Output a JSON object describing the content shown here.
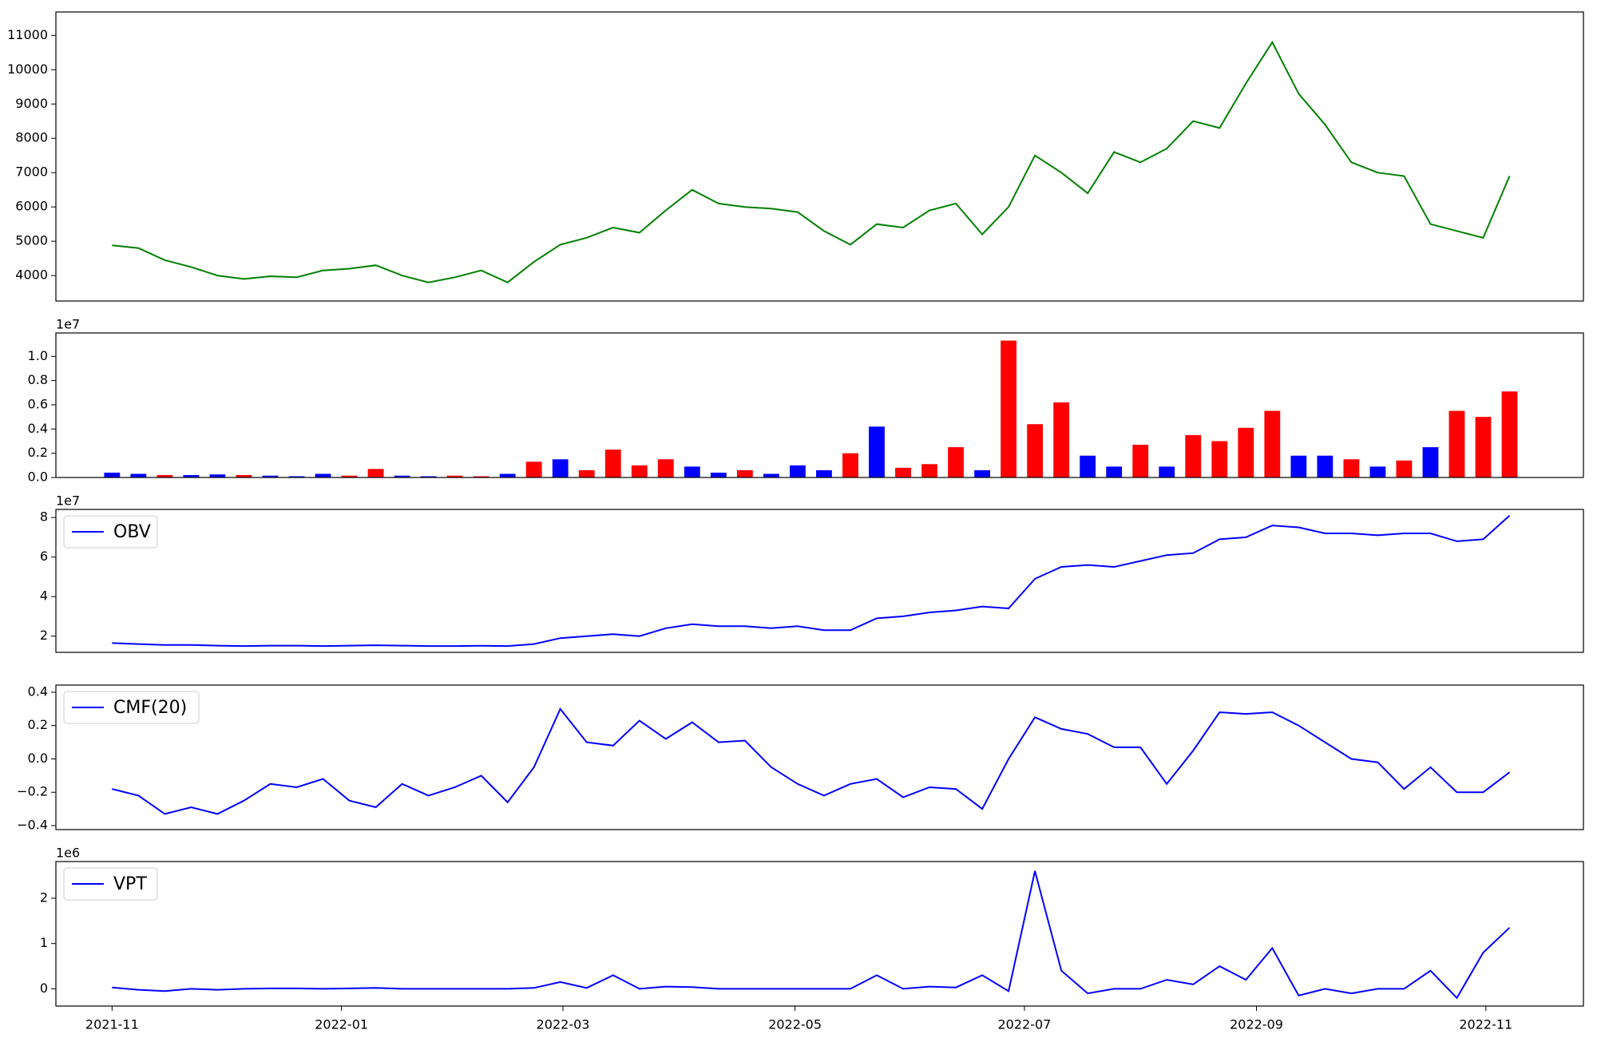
{
  "chart_data": [
    {
      "type": "line",
      "x": [
        0,
        1,
        2,
        3,
        4,
        5,
        6,
        7,
        8,
        9,
        10,
        11,
        12,
        13,
        14,
        15,
        16,
        17,
        18,
        19,
        20,
        21,
        22,
        23,
        24,
        25,
        26,
        27,
        28,
        29,
        30,
        31,
        32,
        33,
        34,
        35,
        36,
        37,
        38,
        39,
        40,
        41,
        42,
        43,
        44,
        45,
        46,
        47,
        48,
        49,
        50,
        51,
        52,
        53
      ],
      "xlim": [
        -2.13,
        55.8
      ],
      "series": [
        {
          "color": "#008000",
          "values": [
            4880,
            4800,
            4450,
            4250,
            4000,
            3900,
            3980,
            3950,
            4150,
            4200,
            4300,
            4000,
            3800,
            3950,
            4150,
            3800,
            4400,
            4900,
            5100,
            5400,
            5250,
            5900,
            6500,
            6100,
            6000,
            5950,
            5850,
            5300,
            4900,
            5500,
            5400,
            5900,
            6100,
            5200,
            6000,
            7500,
            7000,
            6400,
            7600,
            7300,
            7700,
            8500,
            8300,
            9600,
            10800,
            9300,
            8400,
            7300,
            7000,
            6900,
            5500,
            5300,
            5100,
            6900
          ]
        }
      ],
      "ylim": [
        3258,
        11682
      ],
      "yticks": [
        4000,
        5000,
        6000,
        7000,
        8000,
        9000,
        10000,
        11000
      ]
    },
    {
      "type": "bar",
      "x": [
        0,
        1,
        2,
        3,
        4,
        5,
        6,
        7,
        8,
        9,
        10,
        11,
        12,
        13,
        14,
        15,
        16,
        17,
        18,
        19,
        20,
        21,
        22,
        23,
        24,
        25,
        26,
        27,
        28,
        29,
        30,
        31,
        32,
        33,
        34,
        35,
        36,
        37,
        38,
        39,
        40,
        41,
        42,
        43,
        44,
        45,
        46,
        47,
        48,
        49,
        50,
        51,
        52,
        53
      ],
      "xlim": [
        -2.13,
        55.8
      ],
      "values": [
        400000,
        300000,
        200000,
        200000,
        250000,
        200000,
        150000,
        100000,
        300000,
        150000,
        700000,
        150000,
        100000,
        150000,
        100000,
        300000,
        1300000,
        1500000,
        600000,
        2300000,
        1000000,
        1500000,
        900000,
        400000,
        600000,
        300000,
        1000000,
        600000,
        2000000,
        4200000,
        800000,
        1100000,
        2500000,
        600000,
        11300000,
        4400000,
        6200000,
        1800000,
        900000,
        2700000,
        900000,
        3500000,
        3000000,
        4100000,
        5500000,
        1800000,
        1800000,
        1500000,
        900000,
        1400000,
        2500000,
        5500000,
        5000000,
        7100000
      ],
      "colors": [
        "blue",
        "blue",
        "red",
        "blue",
        "blue",
        "red",
        "blue",
        "blue",
        "blue",
        "red",
        "red",
        "blue",
        "blue",
        "red",
        "red",
        "blue",
        "red",
        "blue",
        "red",
        "red",
        "red",
        "red",
        "blue",
        "blue",
        "red",
        "blue",
        "blue",
        "blue",
        "red",
        "blue",
        "red",
        "red",
        "red",
        "blue",
        "red",
        "red",
        "red",
        "blue",
        "blue",
        "red",
        "blue",
        "red",
        "red",
        "red",
        "red",
        "blue",
        "blue",
        "red",
        "blue",
        "red",
        "blue",
        "red",
        "red",
        "red"
      ],
      "ylim": [
        0,
        11930000
      ],
      "yticks": [
        {
          "value": 0,
          "label": "0.0"
        },
        {
          "value": 2000000,
          "label": "0.2"
        },
        {
          "value": 4000000,
          "label": "0.4"
        },
        {
          "value": 6000000,
          "label": "0.6"
        },
        {
          "value": 8000000,
          "label": "0.8"
        },
        {
          "value": 10000000,
          "label": "1.0"
        }
      ],
      "offset_text": "1e7"
    },
    {
      "type": "line",
      "x": [
        0,
        1,
        2,
        3,
        4,
        5,
        6,
        7,
        8,
        9,
        10,
        11,
        12,
        13,
        14,
        15,
        16,
        17,
        18,
        19,
        20,
        21,
        22,
        23,
        24,
        25,
        26,
        27,
        28,
        29,
        30,
        31,
        32,
        33,
        34,
        35,
        36,
        37,
        38,
        39,
        40,
        41,
        42,
        43,
        44,
        45,
        46,
        47,
        48,
        49,
        50,
        51,
        52,
        53
      ],
      "xlim": [
        -2.13,
        55.8
      ],
      "series": [
        {
          "name": "OBV",
          "color": "#0000ff",
          "values": [
            16500000,
            16000000,
            15500000,
            15500000,
            15200000,
            15000000,
            15200000,
            15200000,
            15000000,
            15200000,
            15400000,
            15200000,
            15000000,
            15000000,
            15100000,
            15000000,
            16000000,
            19000000,
            20000000,
            21000000,
            20000000,
            24000000,
            26000000,
            25000000,
            25000000,
            24000000,
            25000000,
            23000000,
            23000000,
            29000000,
            30000000,
            32000000,
            33000000,
            35000000,
            34000000,
            49000000,
            55000000,
            56000000,
            55000000,
            58000000,
            61000000,
            62000000,
            69000000,
            70000000,
            76000000,
            75000000,
            72000000,
            72000000,
            71000000,
            72000000,
            72000000,
            68000000,
            69000000,
            81000000
          ]
        }
      ],
      "ylim": [
        11800000,
        84100000
      ],
      "yticks": [
        {
          "value": 20000000,
          "label": "2"
        },
        {
          "value": 40000000,
          "label": "4"
        },
        {
          "value": 60000000,
          "label": "6"
        },
        {
          "value": 80000000,
          "label": "8"
        }
      ],
      "offset_text": "1e7",
      "legend": "upper left"
    },
    {
      "type": "line",
      "x": [
        0,
        1,
        2,
        3,
        4,
        5,
        6,
        7,
        8,
        9,
        10,
        11,
        12,
        13,
        14,
        15,
        16,
        17,
        18,
        19,
        20,
        21,
        22,
        23,
        24,
        25,
        26,
        27,
        28,
        29,
        30,
        31,
        32,
        33,
        34,
        35,
        36,
        37,
        38,
        39,
        40,
        41,
        42,
        43,
        44,
        45,
        46,
        47,
        48,
        49,
        50,
        51,
        52,
        53
      ],
      "xlim": [
        -2.13,
        55.8
      ],
      "series": [
        {
          "name": "CMF(20)",
          "color": "#0000ff",
          "values": [
            -0.18,
            -0.22,
            -0.33,
            -0.29,
            -0.33,
            -0.25,
            -0.15,
            -0.17,
            -0.12,
            -0.25,
            -0.29,
            -0.15,
            -0.22,
            -0.17,
            -0.1,
            -0.26,
            -0.05,
            0.3,
            0.1,
            0.08,
            0.23,
            0.12,
            0.22,
            0.1,
            0.11,
            -0.05,
            -0.15,
            -0.22,
            -0.15,
            -0.12,
            -0.23,
            -0.17,
            -0.18,
            -0.3,
            0.0,
            0.25,
            0.18,
            0.15,
            0.07,
            0.07,
            -0.15,
            0.05,
            0.28,
            0.27,
            0.28,
            0.2,
            0.1,
            0.0,
            -0.02,
            -0.18,
            -0.05,
            -0.2,
            -0.2,
            -0.08
          ]
        }
      ],
      "ylim": [
        -0.424,
        0.443
      ],
      "yticks": [
        {
          "value": -0.4,
          "label": "−0.4"
        },
        {
          "value": -0.2,
          "label": "−0.2"
        },
        {
          "value": 0,
          "label": "0.0"
        },
        {
          "value": 0.2,
          "label": "0.2"
        },
        {
          "value": 0.4,
          "label": "0.4"
        }
      ],
      "legend": "upper left"
    },
    {
      "type": "line",
      "x": [
        0,
        1,
        2,
        3,
        4,
        5,
        6,
        7,
        8,
        9,
        10,
        11,
        12,
        13,
        14,
        15,
        16,
        17,
        18,
        19,
        20,
        21,
        22,
        23,
        24,
        25,
        26,
        27,
        28,
        29,
        30,
        31,
        32,
        33,
        34,
        35,
        36,
        37,
        38,
        39,
        40,
        41,
        42,
        43,
        44,
        45,
        46,
        47,
        48,
        49,
        50,
        51,
        52,
        53
      ],
      "xlim": [
        -2.13,
        55.8
      ],
      "xticks": [
        {
          "value": 0,
          "label": "2021-11"
        },
        {
          "value": 8.7,
          "label": "2022-01"
        },
        {
          "value": 17.1,
          "label": "2022-03"
        },
        {
          "value": 25.9,
          "label": "2022-05"
        },
        {
          "value": 34.6,
          "label": "2022-07"
        },
        {
          "value": 43.4,
          "label": "2022-09"
        },
        {
          "value": 52.1,
          "label": "2022-11"
        }
      ],
      "series": [
        {
          "name": "VPT",
          "color": "#0000ff",
          "values": [
            30000,
            -20000,
            -50000,
            0,
            -20000,
            0,
            10000,
            10000,
            0,
            10000,
            20000,
            0,
            0,
            0,
            0,
            0,
            20000,
            150000,
            20000,
            300000,
            0,
            50000,
            40000,
            0,
            0,
            0,
            0,
            0,
            0,
            300000,
            0,
            50000,
            30000,
            300000,
            -50000,
            2600000,
            400000,
            -100000,
            0,
            0,
            200000,
            100000,
            500000,
            200000,
            900000,
            -150000,
            0,
            -100000,
            0,
            0,
            400000,
            -200000,
            800000,
            1350000
          ]
        }
      ],
      "ylim": [
        -380000,
        2810000
      ],
      "yticks": [
        {
          "value": 0,
          "label": "0"
        },
        {
          "value": 1000000,
          "label": "1"
        },
        {
          "value": 2000000,
          "label": "2"
        }
      ],
      "offset_text": "1e6",
      "legend": "upper left"
    }
  ]
}
